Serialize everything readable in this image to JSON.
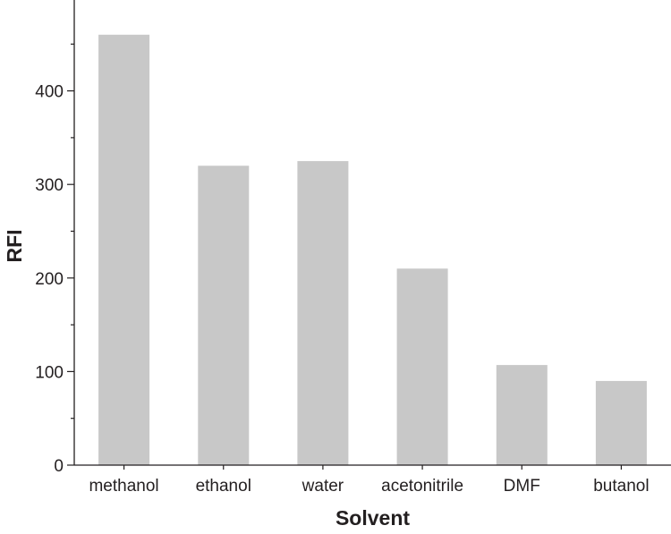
{
  "chart_data": {
    "type": "bar",
    "categories": [
      "methanol",
      "ethanol",
      "water",
      "acetonitrile",
      "DMF",
      "butanol"
    ],
    "values": [
      460,
      320,
      325,
      210,
      107,
      90
    ],
    "xlabel": "Solvent",
    "ylabel": "RFI",
    "ylim": [
      0,
      500
    ],
    "yticks": [
      0,
      100,
      200,
      300,
      400
    ],
    "grid": false,
    "bar_color": "#c8c8c8",
    "axis_color": "#231f20"
  }
}
